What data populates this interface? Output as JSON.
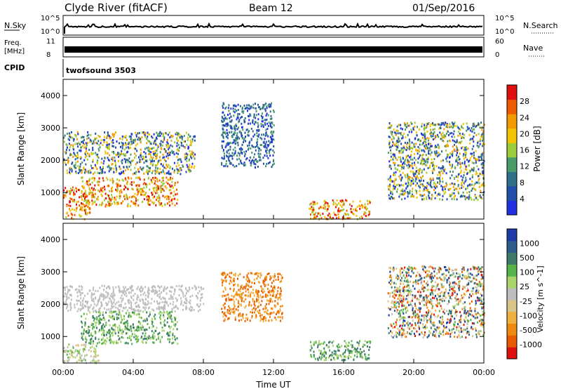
{
  "header": {
    "station": "Clyde River (fitACF)",
    "beam": "Beam 12",
    "date": "01/Sep/2016"
  },
  "top_panels": {
    "nsky_label": "N.Sky",
    "nsearch_label": "N.Search",
    "freq_label_1": "Freq.",
    "freq_label_2": "[MHz]",
    "nave_label": "Nave",
    "cpid_label": "CPID",
    "cpid_value": "twofsound 3503",
    "noise_ticks_left": [
      "10^5",
      "10^0"
    ],
    "noise_ticks_right": [
      "10^5",
      "10^0"
    ],
    "freq_ticks": [
      "11",
      "8"
    ],
    "nave_ticks": [
      "60",
      "0"
    ]
  },
  "colors": {
    "power_scale": [
      "#2030e0",
      "#1f4fa8",
      "#2f6f8a",
      "#4a9a6a",
      "#9ccc3a",
      "#f2c300",
      "#f39a00",
      "#ee5a00",
      "#e01010"
    ],
    "velocity_scale": [
      "#1c3aa8",
      "#2e5c8c",
      "#3d7a6a",
      "#57b44a",
      "#a9d46a",
      "#bebebe",
      "#d9c48a",
      "#f0b040",
      "#ee8a10",
      "#e85a00",
      "#e01010"
    ]
  },
  "chart_data": [
    {
      "type": "heatmap",
      "title": "Power",
      "xlabel": "",
      "ylabel": "Slant Range [km]",
      "xlim": [
        "00:00",
        "00:00"
      ],
      "ylim": [
        180,
        4500
      ],
      "yticks": [
        "1000",
        "2000",
        "3000",
        "4000"
      ],
      "colorbar": {
        "label": "Power [dB]",
        "ticks": [
          "4",
          "8",
          "12",
          "16",
          "20",
          "24",
          "28"
        ]
      },
      "echo_regions": [
        {
          "start": "00:00",
          "end": "01:30",
          "range_min": 200,
          "range_max": 1200,
          "level": "high"
        },
        {
          "start": "01:00",
          "end": "06:30",
          "range_min": 600,
          "range_max": 1500,
          "level": "high"
        },
        {
          "start": "00:00",
          "end": "07:30",
          "range_min": 1600,
          "range_max": 2900,
          "level": "medium"
        },
        {
          "start": "09:00",
          "end": "12:00",
          "range_min": 1800,
          "range_max": 3800,
          "level": "low"
        },
        {
          "start": "14:00",
          "end": "17:30",
          "range_min": 200,
          "range_max": 800,
          "level": "high"
        },
        {
          "start": "18:30",
          "end": "00:00",
          "range_min": 800,
          "range_max": 3200,
          "level": "medium"
        }
      ]
    },
    {
      "type": "heatmap",
      "title": "Velocity",
      "xlabel": "Time UT",
      "ylabel": "Slant Range [km]",
      "xlim": [
        "00:00",
        "00:00"
      ],
      "ylim": [
        180,
        4500
      ],
      "xticks": [
        "00:00",
        "04:00",
        "08:00",
        "12:00",
        "16:00",
        "20:00",
        "00:00"
      ],
      "yticks": [
        "1000",
        "2000",
        "3000",
        "4000"
      ],
      "colorbar": {
        "label": "Velocity [m s^-1]",
        "ticks": [
          "1000",
          "500",
          "100",
          "25",
          "-25",
          "-100",
          "-500",
          "-1000"
        ]
      },
      "echo_regions": [
        {
          "start": "00:00",
          "end": "02:00",
          "range_min": 200,
          "range_max": 800,
          "level": "low-velocity"
        },
        {
          "start": "01:00",
          "end": "06:30",
          "range_min": 800,
          "range_max": 1800,
          "level": "positive"
        },
        {
          "start": "00:00",
          "end": "08:00",
          "range_min": 1800,
          "range_max": 2600,
          "level": "near-zero"
        },
        {
          "start": "09:00",
          "end": "12:30",
          "range_min": 1500,
          "range_max": 3000,
          "level": "negative"
        },
        {
          "start": "14:00",
          "end": "17:30",
          "range_min": 300,
          "range_max": 900,
          "level": "positive"
        },
        {
          "start": "18:30",
          "end": "00:00",
          "range_min": 1000,
          "range_max": 3200,
          "level": "mixed"
        }
      ]
    }
  ]
}
